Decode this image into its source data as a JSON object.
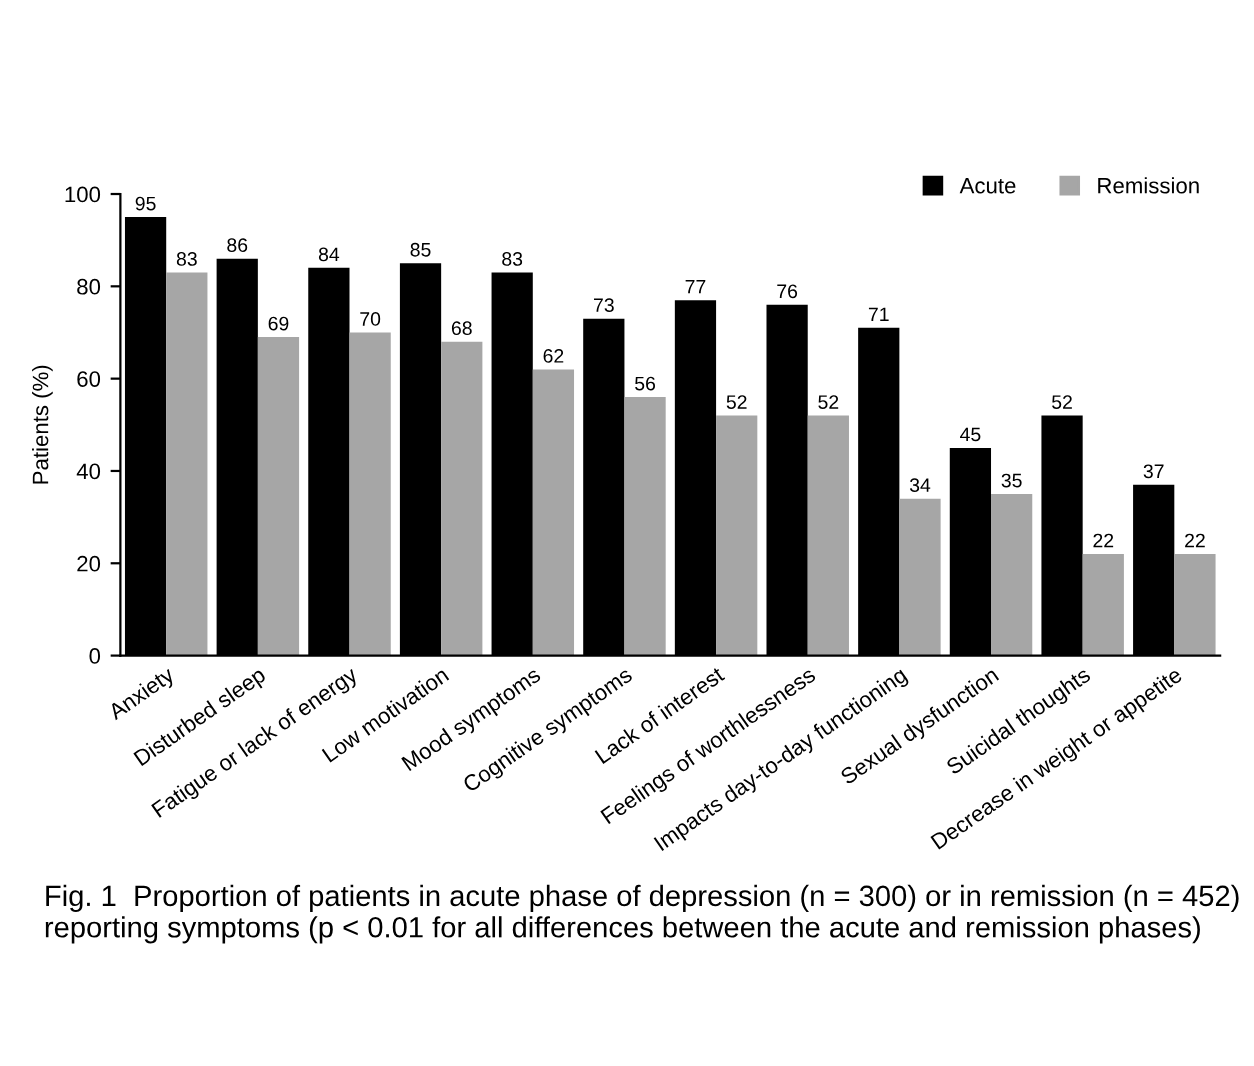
{
  "chart_data": {
    "type": "bar",
    "ylabel": "Patients (%)",
    "categories": [
      "Anxiety",
      "Disturbed sleep",
      "Fatigue or lack of energy",
      "Low motivation",
      "Mood symptoms",
      "Cognitive symptoms",
      "Lack of interest",
      "Feelings of worthlessness",
      "Impacts day-to-day functioning",
      "Sexual dysfunction",
      "Suicidal thoughts",
      "Decrease in weight or appetite"
    ],
    "series": [
      {
        "name": "Acute",
        "color": "#000000",
        "values": [
          95,
          86,
          84,
          85,
          83,
          73,
          77,
          76,
          71,
          45,
          52,
          37
        ]
      },
      {
        "name": "Remission",
        "color": "#a6a6a6",
        "values": [
          83,
          69,
          70,
          68,
          62,
          56,
          52,
          52,
          34,
          35,
          22,
          22
        ]
      }
    ],
    "ylim": [
      0,
      100
    ],
    "yticks": [
      0,
      20,
      40,
      60,
      80,
      100
    ],
    "grid": false,
    "legend": "top right",
    "data_labels": true,
    "annotations": [
      "Fig. 1  Proportion of patients in acute phase of depression (n = 300) or in remission (n = 452) reporting symptoms (p < 0.01 for all differences between the acute and remission phases)"
    ]
  }
}
